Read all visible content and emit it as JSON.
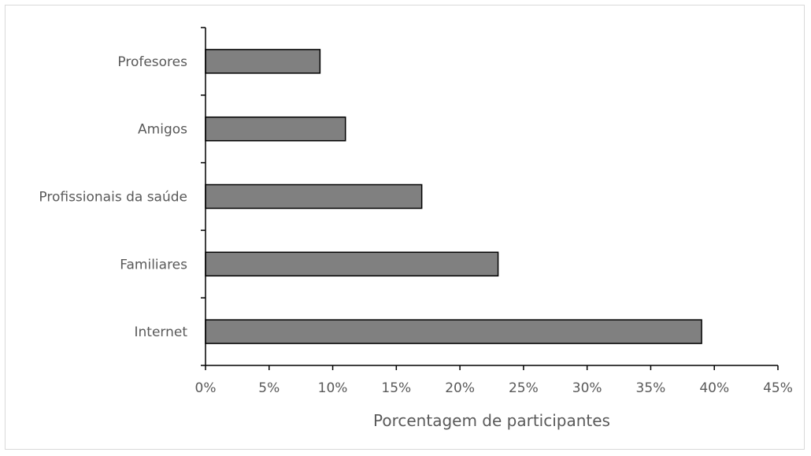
{
  "chart_data": {
    "type": "bar",
    "orientation": "horizontal",
    "title": "",
    "xlabel": "Porcentagem de participantes",
    "ylabel": "",
    "categories": [
      "Internet",
      "Familiares",
      "Profissionais da saúde",
      "Amigos",
      "Profesores"
    ],
    "values": [
      39,
      23,
      17,
      11,
      9
    ],
    "xlim": [
      0,
      45
    ],
    "xticks": [
      0,
      5,
      10,
      15,
      20,
      25,
      30,
      35,
      40,
      45
    ],
    "xtick_labels": [
      "0%",
      "5%",
      "10%",
      "15%",
      "20%",
      "25%",
      "30%",
      "35%",
      "40%",
      "45%"
    ],
    "grid": false,
    "legend": "none",
    "bar_color": "#808080",
    "bar_edge_color": "#000000"
  }
}
